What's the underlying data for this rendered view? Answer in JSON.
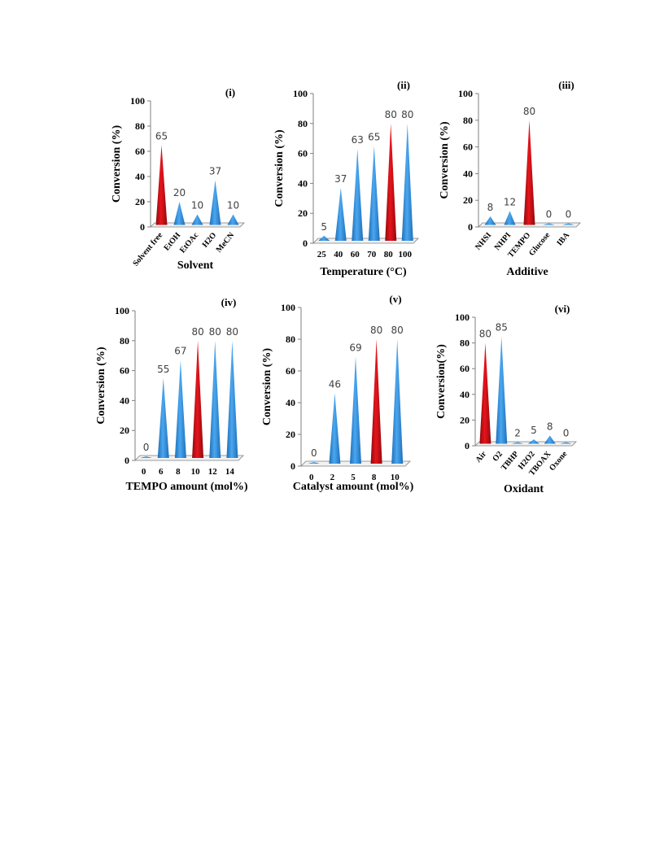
{
  "colors": {
    "highlight": "#e8141b",
    "highlight_dark": "#8e0b0f",
    "bar": "#4aa7f0",
    "bar_dark": "#1f6fb8",
    "axis": "#7f7f7f",
    "text": "#000000",
    "value_label": "#404040"
  },
  "chart_data": [
    {
      "type": "bar",
      "panel_label": "(i)",
      "title": "",
      "xlabel": "Solvent",
      "ylabel": "Conversion (%)",
      "ylim": [
        0,
        100
      ],
      "yticks": [
        0,
        20,
        40,
        60,
        80,
        100
      ],
      "categories": [
        "Solvent free",
        "EtOH",
        "EtOAc",
        "H2O",
        "MeCN"
      ],
      "values": [
        65,
        20,
        10,
        37,
        10
      ],
      "value_labels": [
        "65",
        "20",
        "10",
        "37",
        "10"
      ],
      "highlight_index": 0,
      "rotated_tick_labels": true,
      "grid": false,
      "legend": "none"
    },
    {
      "type": "bar",
      "panel_label": "(ii)",
      "title": "",
      "xlabel": "Temperature (°C)",
      "ylabel": "Conversion (%)",
      "ylim": [
        0,
        100
      ],
      "yticks": [
        0,
        20,
        40,
        60,
        80,
        100
      ],
      "categories": [
        "25",
        "40",
        "60",
        "70",
        "80",
        "100"
      ],
      "values": [
        5,
        37,
        63,
        65,
        80,
        80
      ],
      "value_labels": [
        "5",
        "37",
        "63",
        "65",
        "80",
        "80"
      ],
      "highlight_index": 4,
      "rotated_tick_labels": false,
      "grid": false,
      "legend": "none"
    },
    {
      "type": "bar",
      "panel_label": "(iii)",
      "title": "",
      "xlabel": "Additive",
      "ylabel": "Conversion (%)",
      "ylim": [
        0,
        100
      ],
      "yticks": [
        0,
        20,
        40,
        60,
        80,
        100
      ],
      "categories": [
        "NHSI",
        "NHPI",
        "TEMPO",
        "Glucose",
        "IBA"
      ],
      "values": [
        8,
        12,
        80,
        0,
        0
      ],
      "value_labels": [
        "8",
        "12",
        "80",
        "0",
        "0"
      ],
      "highlight_index": 2,
      "rotated_tick_labels": true,
      "grid": false,
      "legend": "none"
    },
    {
      "type": "bar",
      "panel_label": "(iv)",
      "title": "",
      "xlabel": "TEMPO  amount  (mol%)",
      "ylabel": "Conversion (%)",
      "ylim": [
        0,
        100
      ],
      "yticks": [
        0,
        20,
        40,
        60,
        80,
        100
      ],
      "categories": [
        "0",
        "6",
        "8",
        "10",
        "12",
        "14"
      ],
      "values": [
        0,
        55,
        67,
        80,
        80,
        80
      ],
      "value_labels": [
        "0",
        "55",
        "67",
        "80",
        "80",
        "80"
      ],
      "highlight_index": 3,
      "rotated_tick_labels": false,
      "grid": false,
      "legend": "none"
    },
    {
      "type": "bar",
      "panel_label": "(v)",
      "title": "",
      "xlabel": "Catalyst amount (mol%)",
      "ylabel": "Conversion (%)",
      "ylim": [
        0,
        100
      ],
      "yticks": [
        0,
        20,
        40,
        60,
        80,
        100
      ],
      "categories": [
        "0",
        "2",
        "5",
        "8",
        "10"
      ],
      "values": [
        0,
        46,
        69,
        80,
        80
      ],
      "value_labels": [
        "0",
        "46",
        "69",
        "80",
        "80"
      ],
      "highlight_index": 3,
      "rotated_tick_labels": false,
      "grid": false,
      "legend": "none"
    },
    {
      "type": "bar",
      "panel_label": "(vi)",
      "title": "",
      "xlabel": "Oxidant",
      "ylabel": "Conversion(%)",
      "ylim": [
        0,
        100
      ],
      "yticks": [
        0,
        20,
        40,
        60,
        80,
        100
      ],
      "categories": [
        "Air",
        "O2",
        "TBHP",
        "H2O2",
        "TBOAX",
        "Oxone"
      ],
      "values": [
        80,
        85,
        2,
        5,
        8,
        0
      ],
      "value_labels": [
        "80",
        "85",
        "2",
        "5",
        "8",
        "0"
      ],
      "highlight_index": 0,
      "rotated_tick_labels": true,
      "grid": false,
      "legend": "none"
    }
  ]
}
